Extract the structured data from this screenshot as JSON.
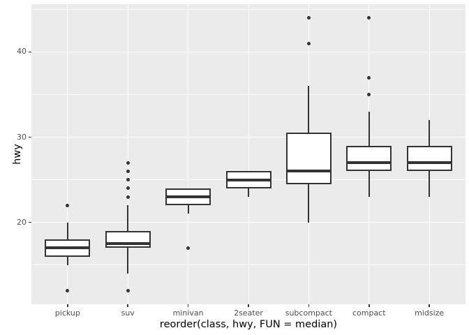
{
  "figure": {
    "background": "#FFFFFF",
    "panel_background": "#EBEBEB",
    "grid_color": "#FFFFFF",
    "box_stroke_color": "#333333",
    "box_fill_color": "#FFFFFF",
    "tick_text_color": "#4D4D4D",
    "title_text_color": "#000000"
  },
  "chart_data": {
    "type": "boxplot",
    "title": "",
    "xlabel": "reorder(class, hwy, FUN = median)",
    "ylabel": "hwy",
    "categories": [
      "pickup",
      "suv",
      "minivan",
      "2seater",
      "subcompact",
      "compact",
      "midsize"
    ],
    "y_ticks": [
      20,
      30,
      40
    ],
    "y_minor_ticks": [
      15,
      25,
      35,
      45
    ],
    "ylim": [
      10.4,
      45.6
    ],
    "grid": true,
    "legend": false,
    "series": [
      {
        "name": "pickup",
        "whisker_low": 15,
        "q1": 16,
        "median": 17,
        "q3": 18,
        "whisker_high": 20,
        "outliers": [
          12,
          22
        ]
      },
      {
        "name": "suv",
        "whisker_low": 14,
        "q1": 17,
        "median": 17.5,
        "q3": 19,
        "whisker_high": 22,
        "outliers": [
          12,
          23,
          24,
          25,
          26,
          27
        ]
      },
      {
        "name": "minivan",
        "whisker_low": 21,
        "q1": 22,
        "median": 23,
        "q3": 24,
        "whisker_high": 24,
        "outliers": [
          17
        ]
      },
      {
        "name": "2seater",
        "whisker_low": 23,
        "q1": 24,
        "median": 25,
        "q3": 26,
        "whisker_high": 26,
        "outliers": []
      },
      {
        "name": "subcompact",
        "whisker_low": 20,
        "q1": 24.5,
        "median": 26,
        "q3": 30.5,
        "whisker_high": 36,
        "outliers": [
          41,
          44
        ]
      },
      {
        "name": "compact",
        "whisker_low": 23,
        "q1": 26,
        "median": 27,
        "q3": 29,
        "whisker_high": 33,
        "outliers": [
          35,
          37,
          44
        ]
      },
      {
        "name": "midsize",
        "whisker_low": 23,
        "q1": 26,
        "median": 27,
        "q3": 29,
        "whisker_high": 32,
        "outliers": []
      }
    ]
  }
}
